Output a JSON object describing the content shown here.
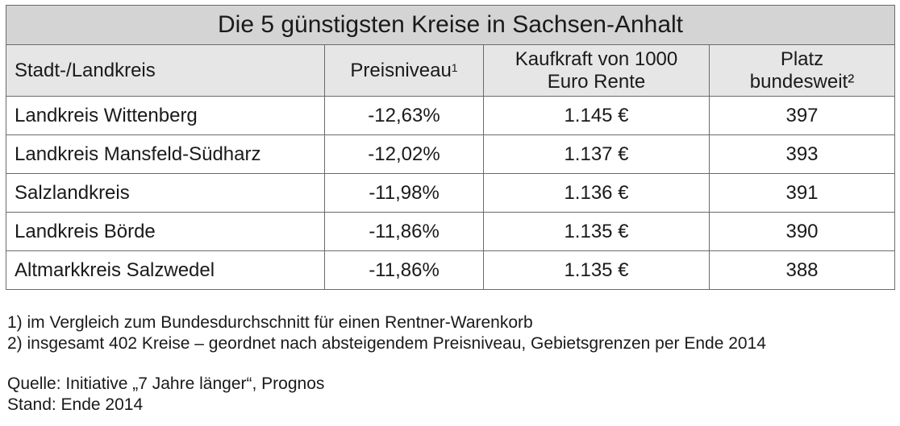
{
  "title": "Die 5 günstigsten Kreise in Sachsen-Anhalt",
  "headers": {
    "col1": "Stadt-/Landkreis",
    "col2": "Preisniveau",
    "col2_sup": "1",
    "col3_line1": "Kaufkraft von 1000",
    "col3_line2": "Euro Rente",
    "col4_line1": "Platz",
    "col4_line2": "bundesweit²"
  },
  "rows": [
    {
      "kreis": "Landkreis Wittenberg",
      "preisniveau": "-12,63%",
      "kaufkraft": "1.145 €",
      "platz": "397"
    },
    {
      "kreis": "Landkreis Mansfeld-Südharz",
      "preisniveau": "-12,02%",
      "kaufkraft": "1.137 €",
      "platz": "393"
    },
    {
      "kreis": "Salzlandkreis",
      "preisniveau": "-11,98%",
      "kaufkraft": "1.136 €",
      "platz": "391"
    },
    {
      "kreis": "Landkreis Börde",
      "preisniveau": "-11,86%",
      "kaufkraft": "1.135 €",
      "platz": "390"
    },
    {
      "kreis": "Altmarkkreis Salzwedel",
      "preisniveau": "-11,86%",
      "kaufkraft": "1.135 €",
      "platz": "388"
    }
  ],
  "footnotes": {
    "note1": "1) im Vergleich zum Bundesdurchschnitt für einen Rentner-Warenkorb",
    "note2": "2) insgesamt 402 Kreise – geordnet nach absteigendem Preisniveau, Gebietsgrenzen per Ende 2014",
    "source": "Quelle: Initiative „7 Jahre länger“, Prognos",
    "date": "Stand: Ende 2014"
  }
}
